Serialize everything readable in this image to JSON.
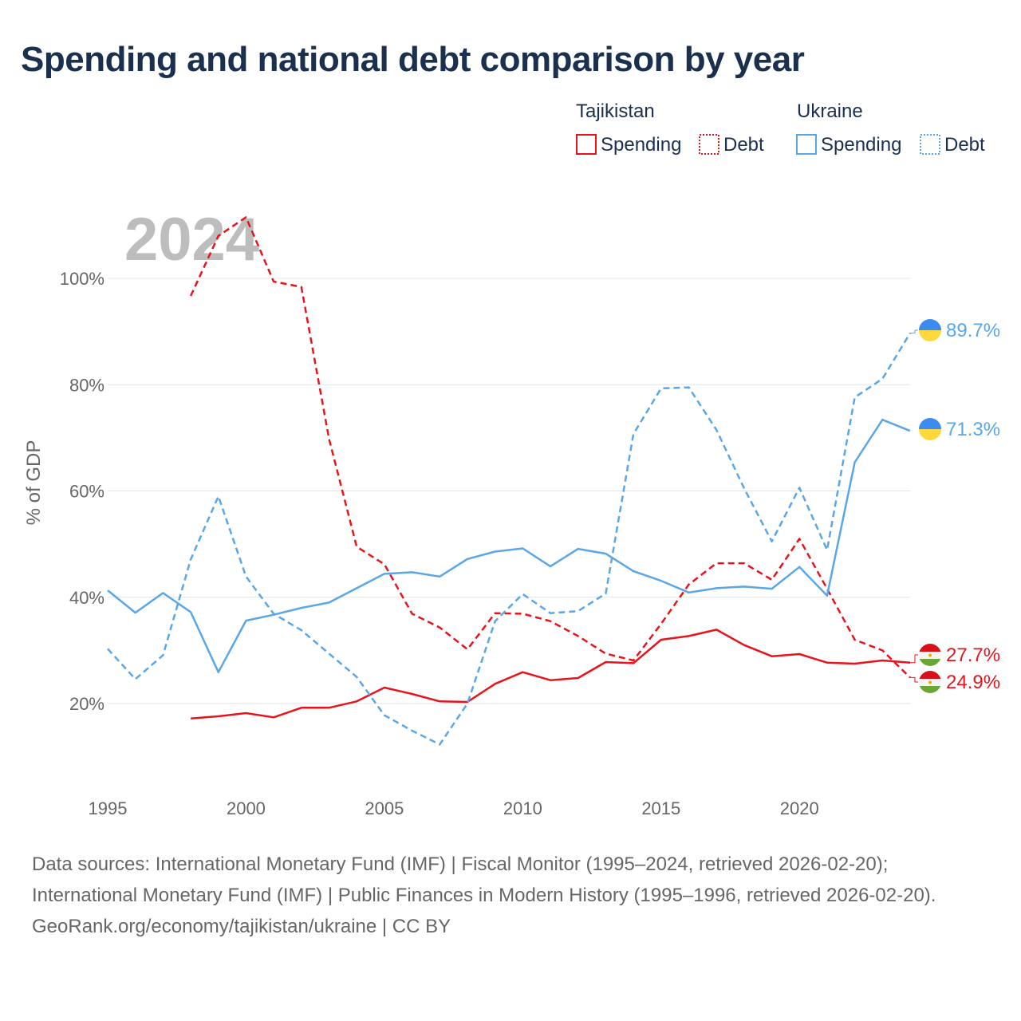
{
  "title": "Spending and national debt comparison by year",
  "watermark_year": "2024",
  "colors": {
    "tajikistan": "#e8141c",
    "ukraine": "#5aa6e6",
    "grid": "#e6e6e6",
    "axis_text": "#666666",
    "legend_text": "#1b2f4e"
  },
  "legend": {
    "groups": [
      {
        "country": "Tajikistan",
        "spending_label": "Spending",
        "debt_label": "Debt"
      },
      {
        "country": "Ukraine",
        "spending_label": "Spending",
        "debt_label": "Debt"
      }
    ]
  },
  "chart_data": {
    "type": "line",
    "title": "Spending and national debt comparison by year",
    "xlabel": "",
    "ylabel": "% of GDP",
    "xlim": [
      1995,
      2024
    ],
    "ylim": [
      5,
      115
    ],
    "x_ticks": [
      1995,
      2000,
      2005,
      2010,
      2015,
      2020
    ],
    "y_ticks": [
      20,
      40,
      60,
      80,
      100
    ],
    "y_tick_labels": [
      "20%",
      "40%",
      "60%",
      "80%",
      "100%"
    ],
    "grid": true,
    "x": [
      1995,
      1996,
      1997,
      1998,
      1999,
      2000,
      2001,
      2002,
      2003,
      2004,
      2005,
      2006,
      2007,
      2008,
      2009,
      2010,
      2011,
      2012,
      2013,
      2014,
      2015,
      2016,
      2017,
      2018,
      2019,
      2020,
      2021,
      2022,
      2023,
      2024
    ],
    "series": [
      {
        "name": "Tajikistan Spending",
        "country": "tajikistan",
        "style": "solid",
        "values": [
          null,
          null,
          null,
          17.2,
          17.6,
          18.2,
          17.4,
          19.2,
          19.2,
          20.4,
          23.0,
          21.8,
          20.4,
          20.3,
          23.7,
          25.9,
          24.4,
          24.8,
          27.8,
          27.6,
          32.0,
          32.7,
          33.9,
          31.0,
          28.9,
          29.3,
          27.7,
          27.5,
          28.1,
          27.7
        ],
        "end_label": "27.7%"
      },
      {
        "name": "Tajikistan Debt",
        "country": "tajikistan",
        "style": "dashed",
        "values": [
          null,
          null,
          null,
          96.7,
          108.0,
          111.5,
          99.4,
          98.4,
          69.8,
          49.5,
          46.2,
          36.9,
          34.3,
          30.2,
          37.0,
          36.9,
          35.5,
          32.7,
          29.4,
          28.1,
          35.0,
          42.4,
          46.4,
          46.4,
          43.3,
          51.0,
          41.6,
          32.0,
          30.0,
          24.9
        ],
        "end_label": "24.9%"
      },
      {
        "name": "Ukraine Spending",
        "country": "ukraine",
        "style": "solid",
        "values": [
          41.3,
          37.1,
          40.8,
          37.2,
          25.9,
          35.6,
          36.7,
          38.0,
          39.0,
          41.7,
          44.4,
          44.7,
          43.9,
          47.2,
          48.6,
          49.2,
          45.8,
          49.1,
          48.2,
          44.9,
          43.1,
          40.9,
          41.7,
          42.0,
          41.6,
          45.7,
          40.3,
          65.4,
          73.4,
          71.3
        ],
        "end_label": "71.3%"
      },
      {
        "name": "Ukraine Debt",
        "country": "ukraine",
        "style": "dashed",
        "values": [
          30.3,
          24.6,
          29.1,
          47.1,
          59.0,
          43.9,
          36.9,
          33.8,
          29.4,
          25.0,
          17.8,
          14.9,
          12.3,
          20.0,
          35.5,
          40.6,
          37.0,
          37.4,
          40.7,
          70.7,
          79.3,
          79.5,
          71.5,
          60.5,
          50.5,
          60.6,
          48.9,
          77.6,
          81.1,
          89.7
        ],
        "end_label": "89.7%"
      }
    ]
  },
  "footer": {
    "sources": "Data sources: International Monetary Fund (IMF) | Fiscal Monitor (1995–2024, retrieved 2026-02-20); International Monetary Fund (IMF) | Public Finances in Modern History (1995–1996, retrieved 2026-02-20).",
    "credit": "GeoRank.org/economy/tajikistan/ukraine | CC BY"
  }
}
